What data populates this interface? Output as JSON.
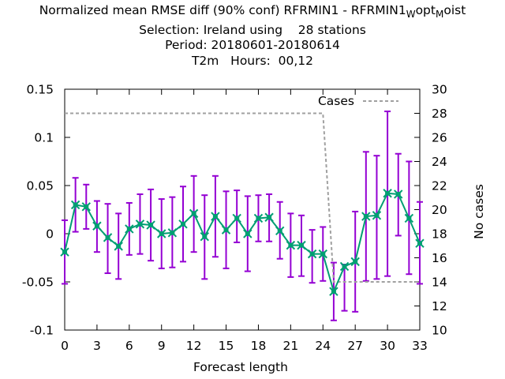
{
  "title": {
    "line1_prefix": "Normalized mean RMSE diff (90% conf) RFRMIN1 - RFRMIN1",
    "line1_sub1": "W",
    "line1_mid": "opt",
    "line1_sub2": "M",
    "line1_suffix": "oist",
    "line2": "Selection: Ireland using    28 stations",
    "line3": "Period: 20180601-20180614",
    "line4": "T2m   Hours:  00,12"
  },
  "chart_data": {
    "type": "line",
    "xlabel": "Forecast length",
    "ylabel": "",
    "y2label": "No cases",
    "xlim": [
      0,
      33
    ],
    "ylim": [
      -0.1,
      0.15
    ],
    "y2lim": [
      10,
      30
    ],
    "x_ticks": [
      0,
      3,
      6,
      9,
      12,
      15,
      18,
      21,
      24,
      27,
      30,
      33
    ],
    "y_ticks": [
      -0.1,
      -0.05,
      0,
      0.05,
      0.1,
      0.15
    ],
    "y_tick_labels": [
      "-0.1",
      "-0.05",
      "0",
      "0.05",
      "0.1",
      "0.15"
    ],
    "y2_ticks": [
      10,
      12,
      14,
      16,
      18,
      20,
      22,
      24,
      26,
      28,
      30
    ],
    "legend": "top-right",
    "grid": false,
    "series": [
      {
        "axis": "y1",
        "color": "#009e73",
        "error_color": "#9400d3",
        "x": [
          0,
          1,
          2,
          3,
          4,
          5,
          6,
          7,
          8,
          9,
          10,
          11,
          12,
          13,
          14,
          15,
          16,
          17,
          18,
          19,
          20,
          21,
          22,
          23,
          24,
          25,
          26,
          27,
          28,
          29,
          30,
          31,
          32,
          33
        ],
        "values": [
          -0.019,
          0.03,
          0.028,
          0.008,
          -0.004,
          -0.013,
          0.005,
          0.01,
          0.009,
          0.0,
          0.001,
          0.01,
          0.021,
          -0.003,
          0.018,
          0.004,
          0.016,
          0.0,
          0.016,
          0.017,
          0.003,
          -0.012,
          -0.012,
          -0.021,
          -0.021,
          -0.06,
          -0.034,
          -0.029,
          0.018,
          0.019,
          0.042,
          0.041,
          0.016,
          -0.01
        ],
        "lower": [
          -0.052,
          0.002,
          0.005,
          -0.019,
          -0.041,
          -0.047,
          -0.022,
          -0.021,
          -0.028,
          -0.036,
          -0.035,
          -0.029,
          -0.019,
          -0.047,
          -0.024,
          -0.036,
          -0.009,
          -0.039,
          -0.008,
          -0.008,
          -0.026,
          -0.045,
          -0.044,
          -0.051,
          -0.049,
          -0.09,
          -0.08,
          -0.081,
          -0.049,
          -0.047,
          -0.044,
          -0.002,
          -0.042,
          -0.052
        ],
        "upper": [
          0.014,
          0.058,
          0.051,
          0.034,
          0.031,
          0.021,
          0.032,
          0.041,
          0.046,
          0.036,
          0.038,
          0.049,
          0.06,
          0.04,
          0.06,
          0.044,
          0.045,
          0.039,
          0.04,
          0.041,
          0.033,
          0.021,
          0.019,
          0.004,
          0.007,
          -0.03,
          -0.032,
          0.023,
          0.085,
          0.081,
          0.127,
          0.083,
          0.075,
          0.033
        ]
      },
      {
        "name": "Cases",
        "axis": "y2",
        "color": "#a0a0a0",
        "dash": true,
        "x": [
          0,
          24,
          25,
          33
        ],
        "values": [
          28,
          28,
          14,
          14
        ]
      }
    ]
  }
}
